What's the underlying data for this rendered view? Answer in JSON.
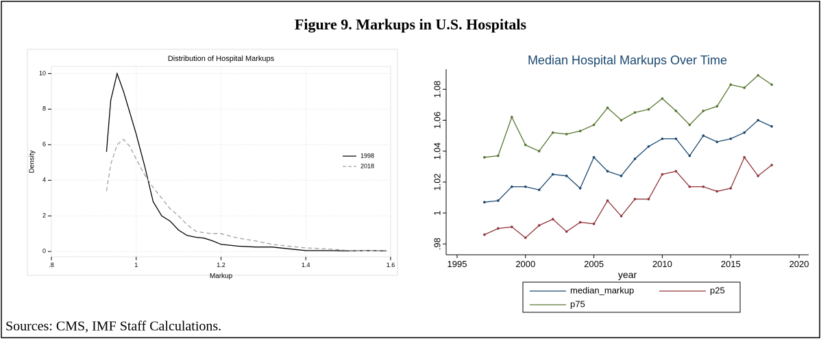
{
  "figure_title": "Figure 9. Markups in U.S. Hospitals",
  "source": "Sources: CMS, IMF Staff Calculations.",
  "chart_data": [
    {
      "type": "line",
      "title": "Distribution of Hospital Markups",
      "xlabel": "Markup",
      "ylabel": "Density",
      "x": [
        0.93,
        0.94,
        0.955,
        0.97,
        0.985,
        1.0,
        1.02,
        1.04,
        1.06,
        1.08,
        1.1,
        1.12,
        1.14,
        1.16,
        1.18,
        1.2,
        1.24,
        1.28,
        1.32,
        1.36,
        1.4,
        1.45,
        1.5,
        1.55,
        1.59
      ],
      "series": [
        {
          "name": "1998",
          "color": "#000000",
          "line_style": "solid",
          "values": [
            5.6,
            8.5,
            10.0,
            9.0,
            7.8,
            6.6,
            4.8,
            2.8,
            2.0,
            1.7,
            1.2,
            0.9,
            0.8,
            0.75,
            0.6,
            0.4,
            0.3,
            0.25,
            0.25,
            0.15,
            0.05,
            0.05,
            0.03,
            0.05,
            0.03
          ]
        },
        {
          "name": "2018",
          "color": "#a0a0a0",
          "line_style": "dashed",
          "values": [
            3.4,
            4.9,
            6.0,
            6.3,
            5.9,
            5.2,
            4.3,
            3.6,
            3.0,
            2.4,
            2.0,
            1.5,
            1.15,
            1.05,
            1.0,
            1.0,
            0.75,
            0.6,
            0.4,
            0.3,
            0.2,
            0.15,
            0.05,
            0.05,
            0.05
          ]
        }
      ],
      "xlim": [
        0.8,
        1.6
      ],
      "xticks": [
        {
          "value": 0.8,
          "label": ".8"
        },
        1,
        1.2,
        1.4,
        1.6
      ],
      "ylim": [
        -0.3,
        10.4
      ],
      "yticks": [
        0,
        2,
        4,
        6,
        8,
        10
      ],
      "grid": true,
      "markers": false,
      "legend": "right"
    },
    {
      "type": "line",
      "title": "Median Hospital Markups Over Time",
      "xlabel": "year",
      "x": [
        1997,
        1998,
        1999,
        2000,
        2001,
        2002,
        2003,
        2004,
        2005,
        2006,
        2007,
        2008,
        2009,
        2010,
        2011,
        2012,
        2013,
        2014,
        2015,
        2016,
        2017,
        2018
      ],
      "series": [
        {
          "name": "median_markup",
          "color": "#1a476f",
          "values": [
            1.007,
            1.008,
            1.017,
            1.017,
            1.015,
            1.025,
            1.024,
            1.016,
            1.036,
            1.027,
            1.024,
            1.035,
            1.043,
            1.048,
            1.048,
            1.037,
            1.05,
            1.046,
            1.048,
            1.052,
            1.06,
            1.056
          ]
        },
        {
          "name": "p25",
          "color": "#90353b",
          "values": [
            0.986,
            0.99,
            0.991,
            0.984,
            0.992,
            0.996,
            0.988,
            0.994,
            0.993,
            1.008,
            0.998,
            1.009,
            1.009,
            1.025,
            1.027,
            1.017,
            1.017,
            1.014,
            1.016,
            1.036,
            1.024,
            1.031
          ]
        },
        {
          "name": "p75",
          "color": "#55752f",
          "values": [
            1.036,
            1.037,
            1.062,
            1.044,
            1.04,
            1.052,
            1.051,
            1.053,
            1.057,
            1.068,
            1.06,
            1.065,
            1.067,
            1.074,
            1.066,
            1.057,
            1.066,
            1.069,
            1.083,
            1.081,
            1.089,
            1.083
          ]
        }
      ],
      "xlim": [
        1994.2,
        2020.7
      ],
      "xticks": [
        1995,
        2000,
        2005,
        2010,
        2015,
        2020
      ],
      "ylim": [
        0.973,
        1.093
      ],
      "yticks": [
        {
          "value": 0.98,
          "label": ".98"
        },
        1,
        1.02,
        1.04,
        1.06,
        1.08
      ],
      "grid": false,
      "markers": true,
      "legend": "bottom"
    }
  ]
}
